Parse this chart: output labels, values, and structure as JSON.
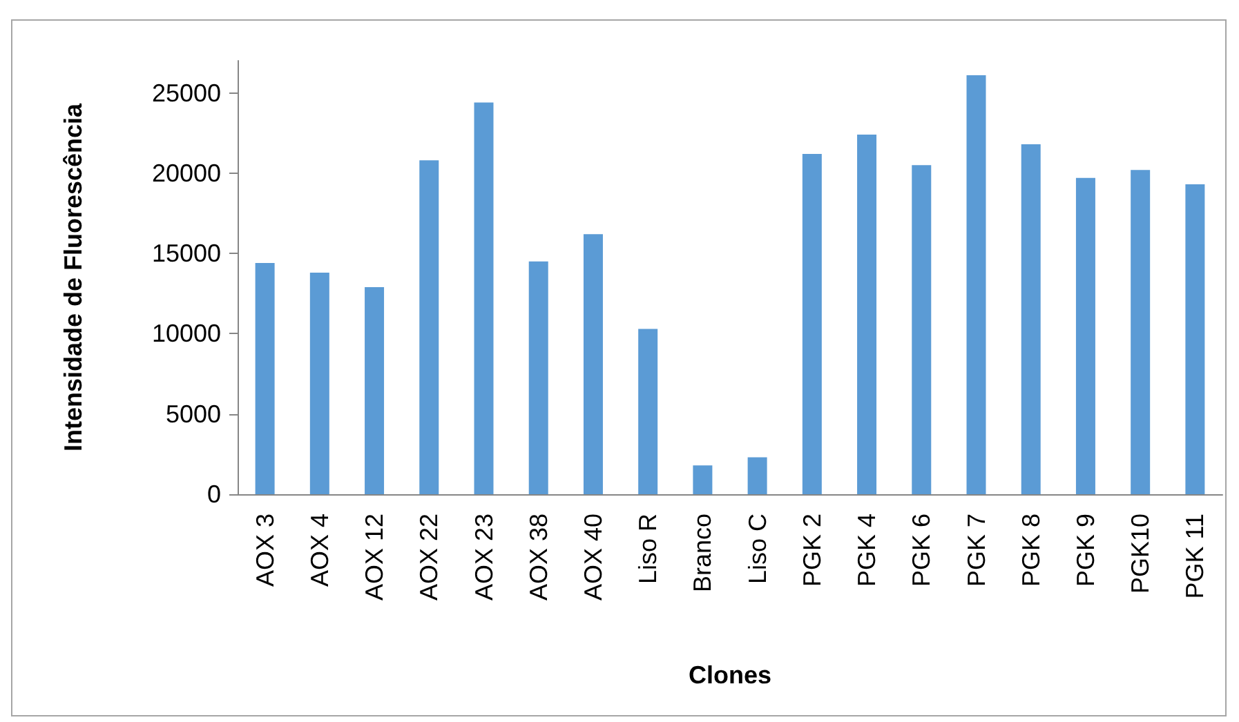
{
  "chart_data": {
    "type": "bar",
    "xlabel": "Clones",
    "ylabel": "Intensidade de Fluorescência",
    "categories": [
      "AOX 3",
      "AOX 4",
      "AOX 12",
      "AOX 22",
      "AOX 23",
      "AOX 38",
      "AOX 40",
      "Liso R",
      "Branco",
      "Liso C",
      "PGK 2",
      "PGK 4",
      "PGK 6",
      "PGK 7",
      "PGK 8",
      "PGK 9",
      "PGK10",
      "PGK 11"
    ],
    "values": [
      14400,
      13800,
      12900,
      20800,
      24400,
      14500,
      16200,
      10300,
      1800,
      2300,
      21200,
      22400,
      20500,
      26100,
      21800,
      19700,
      20200,
      19300
    ],
    "color": "#5b9bd5",
    "ylim": [
      0,
      27000
    ],
    "yticks": [
      0,
      5000,
      10000,
      15000,
      20000,
      25000
    ],
    "grid": false
  }
}
